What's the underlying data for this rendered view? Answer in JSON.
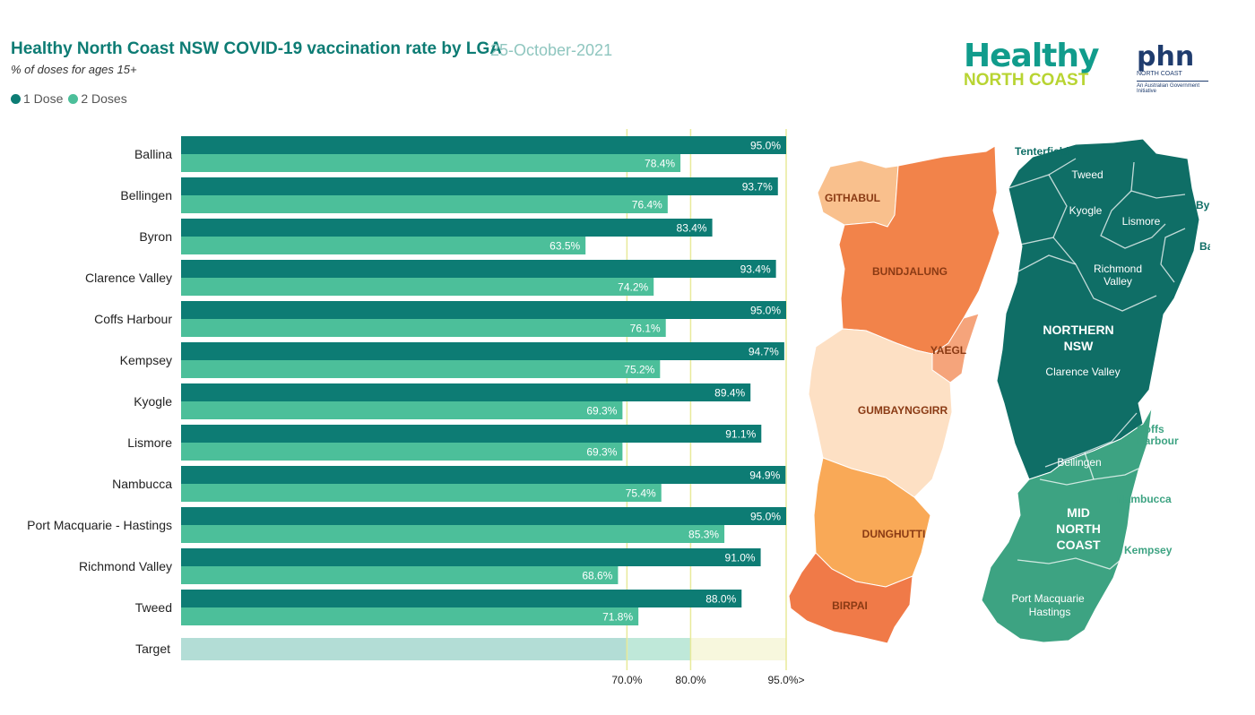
{
  "header": {
    "title": "Healthy North Coast NSW COVID-19 vaccination rate by LGA",
    "date": "25-October-2021",
    "subtitle": "% of doses for ages 15+"
  },
  "legend": [
    {
      "label": "1 Dose",
      "color": "#0d7c74"
    },
    {
      "label": "2 Doses",
      "color": "#4cbf9a"
    }
  ],
  "logos": {
    "healthy_line1": "Healthy",
    "healthy_line2": "NORTH COAST",
    "phn_main": "phn",
    "phn_sub": "NORTH COAST",
    "phn_tagline": "An Australian Government Initiative"
  },
  "chart_data": {
    "type": "bar",
    "orientation": "horizontal",
    "categories": [
      "Ballina",
      "Bellingen",
      "Byron",
      "Clarence Valley",
      "Coffs Harbour",
      "Kempsey",
      "Kyogle",
      "Lismore",
      "Nambucca",
      "Port Macquarie - Hastings",
      "Richmond Valley",
      "Tweed"
    ],
    "series": [
      {
        "name": "1 Dose",
        "values": [
          95.0,
          93.7,
          83.4,
          93.4,
          95.0,
          94.7,
          89.4,
          91.1,
          94.9,
          95.0,
          91.0,
          88.0
        ],
        "labels": [
          "95.0%",
          "93.7%",
          "83.4%",
          "93.4%",
          "95.0%",
          "94.7%",
          "89.4%",
          "91.1%",
          "94.9%",
          "95.0%",
          "91.0%",
          "88.0%"
        ],
        "color": "#0d7c74"
      },
      {
        "name": "2 Doses",
        "values": [
          78.4,
          76.4,
          63.5,
          74.2,
          76.1,
          75.2,
          69.3,
          69.3,
          75.4,
          85.3,
          68.6,
          71.8
        ],
        "labels": [
          "78.4%",
          "76.4%",
          "63.5%",
          "74.2%",
          "76.1%",
          "75.2%",
          "69.3%",
          "69.3%",
          "75.4%",
          "85.3%",
          "68.6%",
          "71.8%"
        ],
        "color": "#4cbf9a"
      }
    ],
    "target": {
      "label": "Target",
      "thresholds": [
        70,
        80,
        95
      ],
      "colors": [
        "#b3ddd6",
        "#bfe8d9",
        "#f7f7dd"
      ]
    },
    "ticks": [
      {
        "value": 70,
        "label": "70.0%"
      },
      {
        "value": 80,
        "label": "80.0%"
      },
      {
        "value": 95,
        "label": "95.0%>"
      }
    ],
    "xlim": [
      0,
      95
    ]
  },
  "map": {
    "colors": {
      "githabul": "#f9c08d",
      "bundjalung": "#f2834a",
      "yaegl": "#f5a47b",
      "gumbaynggirr": "#fde0c4",
      "dunghutti": "#f9a957",
      "birpai": "#f07a48",
      "northern": "#0f6e66",
      "midnorth": "#3da382",
      "line": "#ffffff"
    },
    "nations": [
      "GITHABUL",
      "BUNDJALUNG",
      "YAEGL",
      "GUMBAYNGGIRR",
      "DUNGHUTTI",
      "BIRPAI"
    ],
    "regions": [
      "NORTHERN",
      "NSW",
      "MID",
      "NORTH",
      "COAST"
    ],
    "lgas_inside": [
      "Tweed",
      "Kyogle",
      "Lismore",
      "Richmond",
      "Valley",
      "Clarence Valley",
      "Bellingen",
      "Port Macquarie",
      "Hastings"
    ],
    "lgas_outside": [
      "Tenterfield",
      "Byron",
      "Ballina",
      "Coffs",
      "Harbour",
      "Nambucca",
      "Kempsey"
    ]
  }
}
